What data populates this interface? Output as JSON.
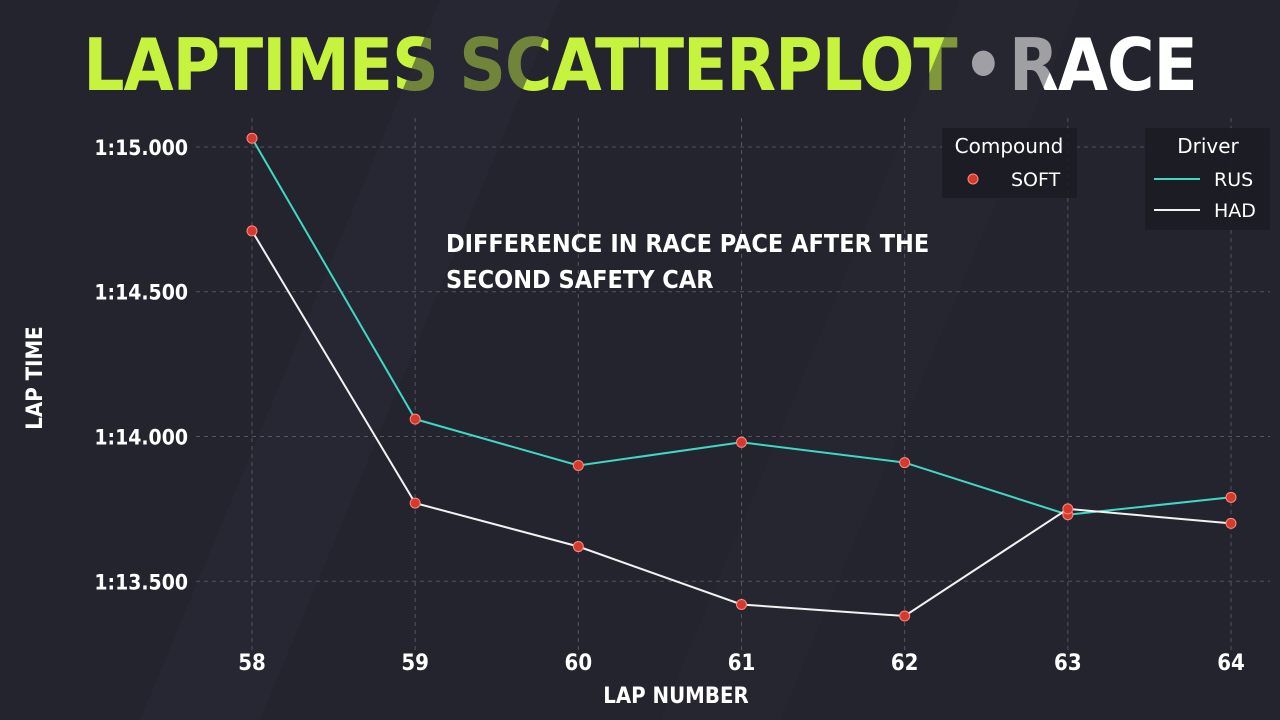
{
  "header": {
    "title": "LAPTIMES SCATTERPLOT",
    "separator": "•",
    "subtitle": "RACE"
  },
  "colors": {
    "background": "#24242f",
    "title_accent": "#c6f33e",
    "rus_line": "#3ed9c4",
    "had_line": "#f2f2f2",
    "soft_marker": "#d63a2f",
    "grid": "#6a6a78",
    "text": "#ffffff"
  },
  "chart_data": {
    "type": "line",
    "xlabel": "LAP NUMBER",
    "ylabel": "LAP TIME",
    "x": [
      58,
      59,
      60,
      61,
      62,
      63,
      64
    ],
    "ylim": [
      73.28,
      75.1
    ],
    "yticks": [
      73.5,
      74.0,
      74.5,
      75.0
    ],
    "ytick_labels": [
      "1:13.500",
      "1:14.000",
      "1:14.500",
      "1:15.000"
    ],
    "grid": true,
    "series": [
      {
        "name": "RUS",
        "values": [
          75.03,
          74.06,
          73.9,
          73.98,
          73.91,
          73.73,
          73.79
        ]
      },
      {
        "name": "HAD",
        "values": [
          74.71,
          73.77,
          73.62,
          73.42,
          73.38,
          73.75,
          73.7
        ]
      }
    ],
    "annotation": [
      "DIFFERENCE IN RACE PACE AFTER THE",
      "SECOND SAFETY CAR"
    ],
    "legend_compound": {
      "title": "Compound",
      "entries": [
        "SOFT"
      ]
    },
    "legend_driver": {
      "title": "Driver",
      "entries": [
        "RUS",
        "HAD"
      ]
    },
    "legend_placement": "top-right"
  }
}
